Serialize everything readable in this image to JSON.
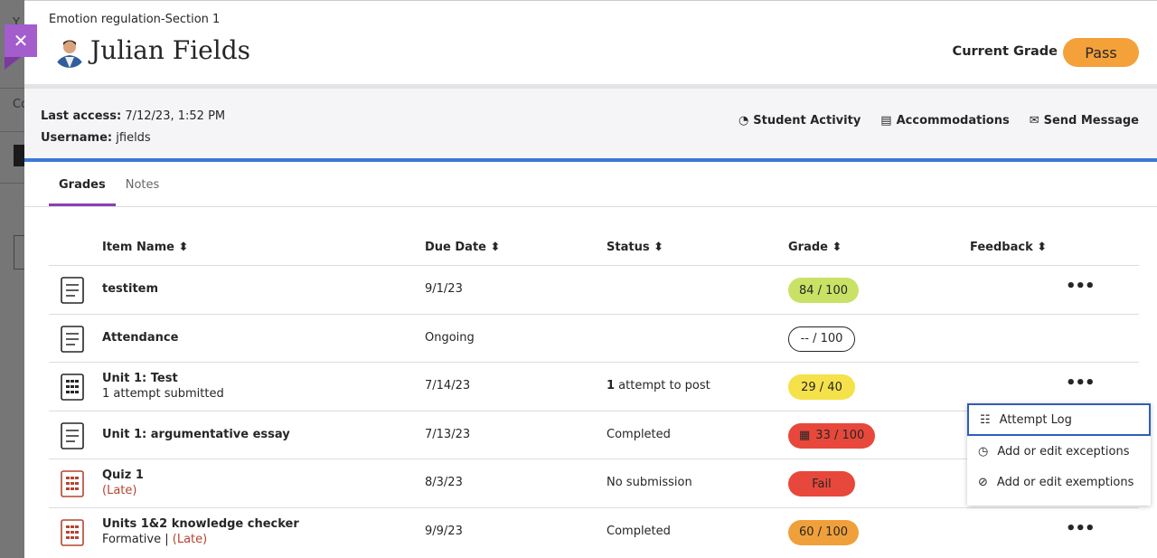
{
  "background": {
    "fragments": [
      "Y",
      "Co"
    ]
  },
  "header": {
    "course": "Emotion regulation-Section 1",
    "student_name": "Julian Fields",
    "current_grade_label": "Current Grade",
    "current_grade": "Pass"
  },
  "info": {
    "last_access_label": "Last access:",
    "last_access": "7/12/23, 1:52 PM",
    "username_label": "Username:",
    "username": "jfields",
    "actions": [
      {
        "label": "Student Activity",
        "icon": "activity-icon"
      },
      {
        "label": "Accommodations",
        "icon": "document-icon"
      },
      {
        "label": "Send Message",
        "icon": "envelope-icon"
      }
    ]
  },
  "tabs": [
    {
      "label": "Grades",
      "active": true
    },
    {
      "label": "Notes",
      "active": false
    }
  ],
  "columns": [
    "Item Name",
    "Due Date",
    "Status",
    "Grade",
    "Feedback"
  ],
  "rows": [
    {
      "name": "testitem",
      "sub": "",
      "late": "",
      "due": "9/1/23",
      "status_bold": "",
      "status": "",
      "grade": "84 / 100",
      "grade_color": "#c9e265",
      "icon": "assignment-icon",
      "more": true
    },
    {
      "name": "Attendance",
      "sub": "",
      "late": "",
      "due": "Ongoing",
      "status_bold": "",
      "status": "",
      "grade": "-- / 100",
      "grade_color": "#ffffff",
      "icon": "calendar-check-icon",
      "more": false
    },
    {
      "name": "Unit 1: Test",
      "sub": "1 attempt submitted",
      "late": "",
      "due": "7/14/23",
      "status_bold": "1",
      "status": " attempt to post",
      "grade": "29 / 40",
      "grade_color": "#f5e14a",
      "icon": "test-icon",
      "more": true
    },
    {
      "name": "Unit 1: argumentative essay",
      "sub": "",
      "late": "",
      "due": "7/13/23",
      "status_bold": "",
      "status": "Completed",
      "grade": "33 / 100",
      "grade_color": "#e8483b",
      "icon": "checklist-icon",
      "more": false,
      "rubric": true
    },
    {
      "name": "Quiz 1",
      "sub": "",
      "late": "(Late)",
      "due": "8/3/23",
      "status_bold": "",
      "status": "No submission",
      "grade": "Fail",
      "grade_color": "#e8483b",
      "icon": "test-icon",
      "more": false
    },
    {
      "name": "Units 1&2 knowledge checker",
      "sub": "Formative | ",
      "late": "(Late)",
      "due": "9/9/23",
      "status_bold": "",
      "status": "Completed",
      "grade": "60 / 100",
      "grade_color": "#f0a03a",
      "icon": "test-icon",
      "more": true
    }
  ],
  "menu": [
    {
      "label": "Attempt Log",
      "icon": "attempt-log-icon"
    },
    {
      "label": "Add or edit exceptions",
      "icon": "clock-icon"
    },
    {
      "label": "Add or edit exemptions",
      "icon": "exempt-icon"
    }
  ],
  "colors": {
    "accent": "#8a3fb8",
    "blue": "#3a78d6",
    "pass": "#f4a13a",
    "close": "#a35dcc"
  }
}
